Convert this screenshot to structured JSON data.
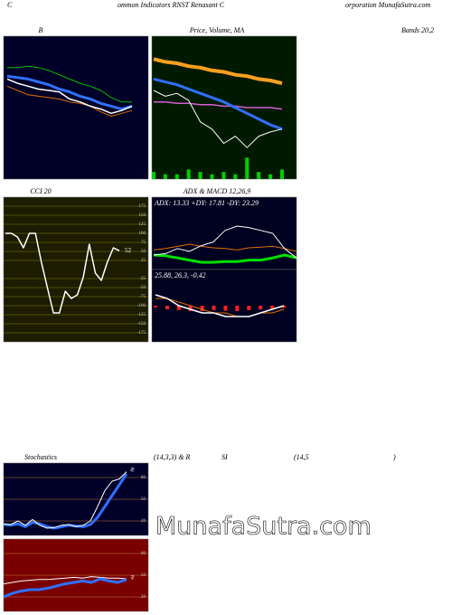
{
  "texts": [
    "C",
    "ommon  Indicators RNST Renasant C",
    "orporation  MunafaSutra.com",
    "Bands 20,2",
    "(14,3,3) & R",
    "SI",
    "(14,5",
    ")",
    "MunafaSutra.com"
  ],
  "chart_data": [
    {
      "type": "line",
      "title": "B",
      "ylim": [
        0,
        100
      ],
      "series": [
        {
          "color": "#00c000",
          "width": 1,
          "values": [
            78,
            78,
            79,
            78,
            76,
            73,
            70,
            67,
            65,
            62,
            57,
            54,
            54
          ]
        },
        {
          "color": "#e07000",
          "width": 1,
          "values": [
            65,
            62,
            59,
            58,
            57,
            56,
            54,
            53,
            51,
            47,
            44,
            46,
            48
          ]
        },
        {
          "color": "#3070ff",
          "width": 3,
          "values": [
            72,
            71,
            70,
            68,
            66,
            63,
            61,
            58,
            56,
            53,
            51,
            49,
            51
          ]
        },
        {
          "color": "#ffffff",
          "width": 1.5,
          "values": [
            70,
            67,
            65,
            63,
            62,
            61,
            56,
            54,
            51,
            49,
            46,
            48,
            51
          ]
        }
      ]
    },
    {
      "type": "line",
      "title": "Price, Volume, MA",
      "ylim": [
        0,
        100
      ],
      "y2lim": [
        0,
        60
      ],
      "series": [
        {
          "type": "bar",
          "axis": "y2",
          "color": "#00d000",
          "values": [
            3,
            2,
            2,
            4,
            3,
            2,
            3,
            2,
            9,
            3,
            2,
            4
          ]
        },
        {
          "color": "#ffa020",
          "width": 4,
          "values": [
            84,
            82,
            81,
            79,
            78,
            76,
            75,
            73,
            72,
            70,
            69,
            67
          ]
        },
        {
          "color": "#d060d0",
          "width": 1.5,
          "values": [
            54,
            54,
            53,
            53,
            52,
            52,
            51,
            51,
            50,
            50,
            50,
            49
          ]
        },
        {
          "color": "#3070ff",
          "width": 3,
          "values": [
            70,
            68,
            66,
            63,
            60,
            57,
            54,
            50,
            46,
            42,
            38,
            35
          ]
        },
        {
          "color": "#ffffff",
          "width": 1,
          "values": [
            62,
            58,
            60,
            55,
            40,
            35,
            25,
            30,
            22,
            30,
            33,
            35
          ]
        }
      ]
    },
    {
      "type": "line",
      "title": "CCI 20",
      "ylim": [
        -200,
        200
      ],
      "yticks": [
        175,
        150,
        125,
        100,
        75,
        50,
        25,
        -25,
        -50,
        -75,
        -100,
        -125,
        -150,
        -175
      ],
      "grid": true,
      "last_label": true,
      "series": [
        {
          "color": "#ffffff",
          "width": 1.5,
          "values": [
            100,
            100,
            90,
            60,
            100,
            100,
            20,
            -50,
            -120,
            -120,
            -60,
            -80,
            -70,
            -20,
            70,
            -10,
            -30,
            20,
            60,
            52
          ]
        }
      ]
    },
    {
      "type": "line",
      "title": "ADX  & MACD 12,26,9",
      "annotation": "ADX: 13.33  +DY: 17.81  -DY: 23.29",
      "ylim": [
        0,
        100
      ],
      "series": [
        {
          "color": "#e07000",
          "width": 1,
          "values": [
            27,
            29,
            32,
            35,
            32,
            30,
            29,
            27,
            30,
            31,
            32,
            29,
            25
          ]
        },
        {
          "color": "#00e000",
          "width": 3,
          "values": [
            20,
            19,
            16,
            13,
            10,
            10,
            11,
            11,
            13,
            13,
            16,
            20,
            16
          ]
        },
        {
          "color": "#ffffff",
          "width": 1,
          "values": [
            20,
            22,
            29,
            25,
            33,
            38,
            54,
            60,
            58,
            54,
            50,
            29,
            16
          ]
        }
      ]
    },
    {
      "type": "line",
      "annotation": "25.88, 26.3, -0.42",
      "ylim": [
        -10,
        10
      ],
      "series": [
        {
          "type": "bar",
          "color": "#ff2020",
          "values": [
            -0.5,
            -1,
            -1.2,
            -1.5,
            -1.5,
            -1.2,
            -1.4,
            -1.5,
            -1.2,
            -1,
            -0.8,
            -0.6
          ]
        },
        {
          "color": "#e07000",
          "width": 1,
          "values": [
            2,
            2,
            1,
            0,
            -1,
            -2,
            -2,
            -3,
            -3,
            -2,
            -2,
            -1
          ]
        },
        {
          "color": "#ffffff",
          "width": 1.5,
          "values": [
            3,
            2,
            0,
            -1,
            -2,
            -2,
            -3,
            -3,
            -3,
            -2,
            -1,
            0
          ]
        }
      ]
    },
    {
      "type": "line",
      "title": "Stochastics",
      "ylim": [
        0,
        100
      ],
      "yticks": [
        80,
        50,
        20
      ],
      "grid": true,
      "last_label": true,
      "series": [
        {
          "color": "#3070ff",
          "width": 3,
          "values": [
            15,
            14,
            16,
            12,
            18,
            16,
            12,
            10,
            12,
            14,
            13,
            12,
            15,
            25,
            40,
            55,
            70,
            85
          ]
        },
        {
          "color": "#ffffff",
          "width": 1,
          "values": [
            16,
            15,
            20,
            14,
            22,
            14,
            10,
            11,
            14,
            15,
            12,
            14,
            20,
            40,
            62,
            75,
            78,
            88
          ]
        }
      ]
    },
    {
      "type": "line",
      "ylim": [
        0,
        100
      ],
      "yticks": [
        80,
        50,
        20
      ],
      "grid": true,
      "last_label": true,
      "series": [
        {
          "color": "#ffffff",
          "width": 1,
          "values": [
            38,
            40,
            42,
            43,
            44,
            44,
            45,
            46,
            47,
            46,
            48,
            47,
            46,
            46,
            45
          ]
        },
        {
          "color": "#3070ff",
          "width": 3,
          "values": [
            20,
            25,
            28,
            30,
            30,
            32,
            35,
            38,
            40,
            42,
            40,
            45,
            42,
            40,
            44
          ]
        }
      ]
    }
  ]
}
